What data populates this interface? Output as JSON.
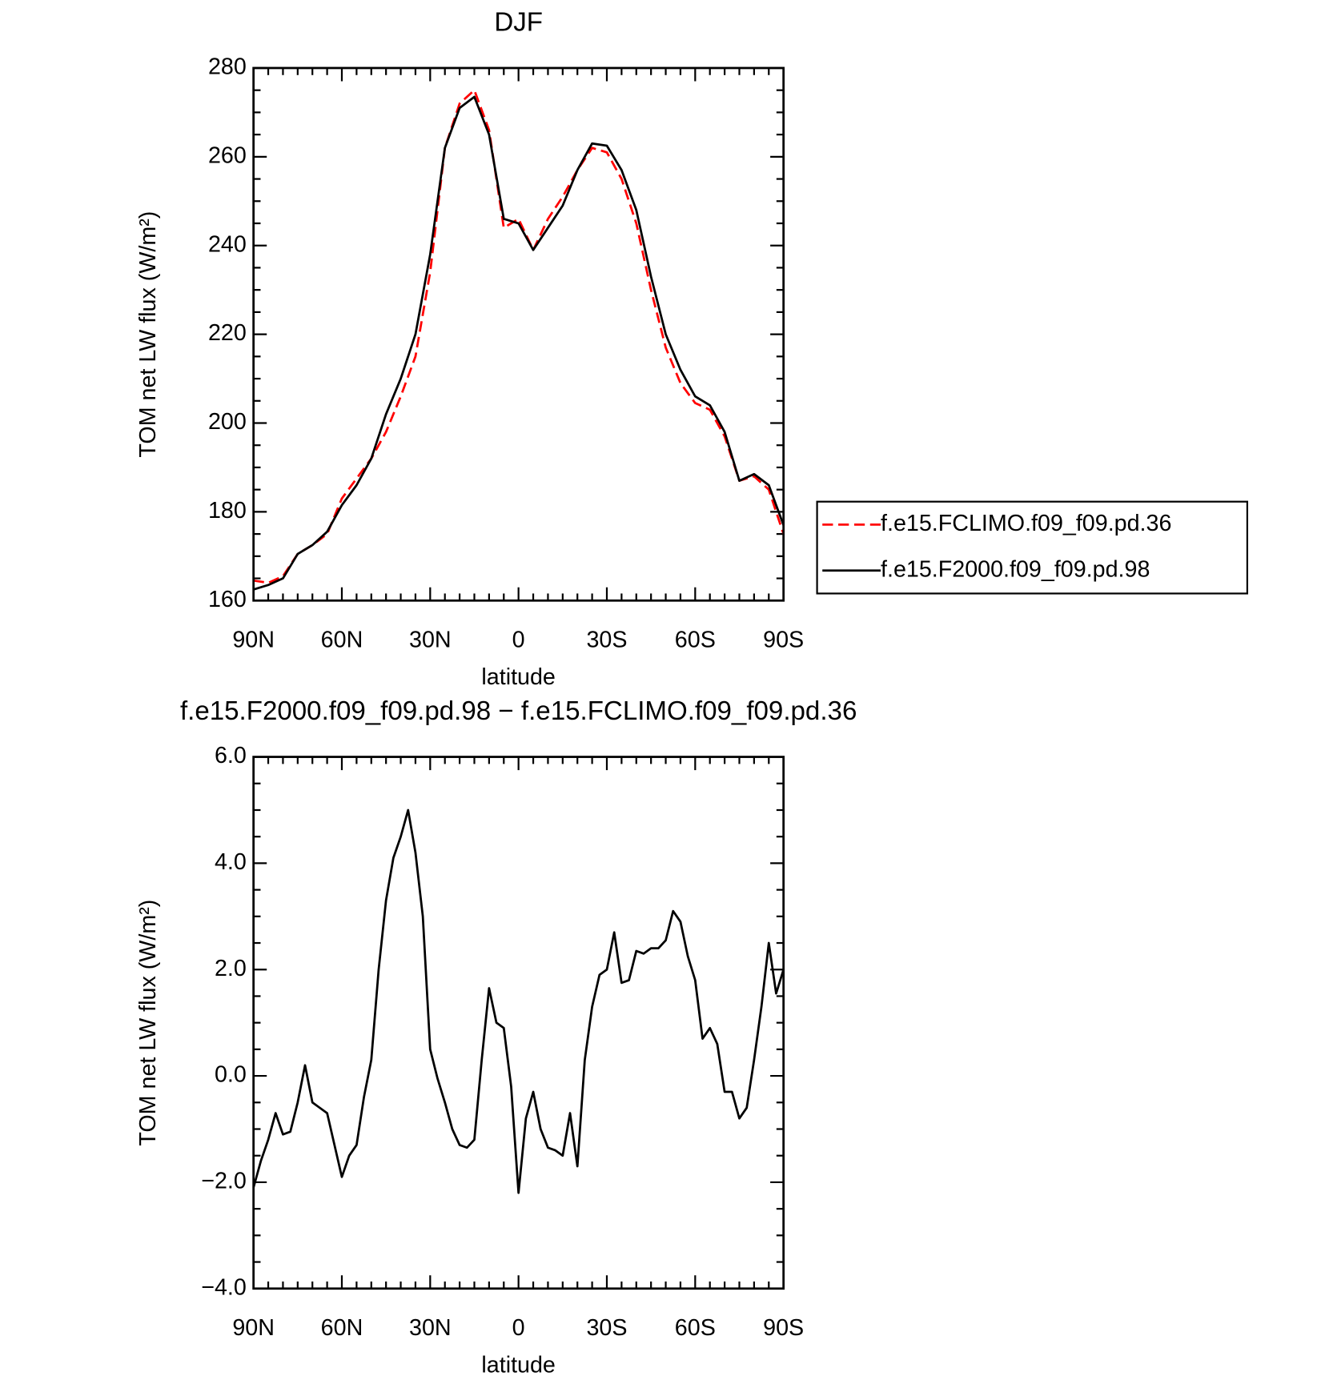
{
  "chart_data": [
    {
      "type": "line",
      "title": "DJF",
      "xlabel": "latitude",
      "ylabel": "TOM net LW flux (W/m²)",
      "x": [
        90,
        85,
        80,
        75,
        70,
        65,
        60,
        55,
        50,
        45,
        40,
        35,
        30,
        25,
        20,
        15,
        10,
        5,
        0,
        -5,
        -10,
        -15,
        -20,
        -25,
        -30,
        -35,
        -40,
        -45,
        -50,
        -55,
        -60,
        -65,
        -70,
        -75,
        -80,
        -85,
        -90
      ],
      "series": [
        {
          "name": "f.e15.FCLIMO.f09_f09.pd.36",
          "color": "#ff0000",
          "dash": "dashed",
          "values": [
            164.5,
            164,
            165.5,
            170.5,
            172.5,
            175,
            183,
            187.5,
            192,
            198,
            206,
            215,
            234,
            262,
            272,
            275,
            266,
            244,
            246,
            239,
            246,
            251,
            257,
            262,
            261,
            255,
            245,
            230,
            217,
            209,
            204.5,
            203,
            197,
            187,
            188,
            185,
            175
          ]
        },
        {
          "name": "f.e15.F2000.f09_f09.pd.98",
          "color": "#000000",
          "dash": "solid",
          "values": [
            162.5,
            163.5,
            165,
            170.5,
            172.5,
            175.5,
            181.5,
            186,
            192,
            202,
            210,
            220,
            238,
            262,
            271,
            273.5,
            265,
            246,
            245,
            239,
            244,
            249,
            257,
            263,
            262.5,
            257,
            248,
            233,
            220,
            212,
            206,
            204,
            198,
            187,
            188.5,
            186,
            177
          ]
        }
      ],
      "xlim": [
        90,
        -90
      ],
      "xticks": [
        {
          "value": 90,
          "label": "90N"
        },
        {
          "value": 60,
          "label": "60N"
        },
        {
          "value": 30,
          "label": "30N"
        },
        0,
        {
          "value": -30,
          "label": "30S"
        },
        {
          "value": -60,
          "label": "60S"
        },
        {
          "value": -90,
          "label": "90S"
        }
      ],
      "ylim": [
        160,
        280
      ],
      "yticks": [
        160,
        180,
        200,
        220,
        240,
        260,
        280
      ],
      "legend": "outside-right"
    },
    {
      "type": "line",
      "title": "f.e15.F2000.f09_f09.pd.98 − f.e15.FCLIMO.f09_f09.pd.36",
      "xlabel": "latitude",
      "ylabel": "TOM net LW flux (W/m²)",
      "x": [
        90,
        87.5,
        85,
        82.5,
        80,
        77.5,
        75,
        72.5,
        70,
        67.5,
        65,
        62.5,
        60,
        57.5,
        55,
        52.5,
        50,
        47.5,
        45,
        42.5,
        40,
        37.5,
        35,
        32.5,
        30,
        27.5,
        25,
        22.5,
        20,
        17.5,
        15,
        12.5,
        10,
        7.5,
        5,
        2.5,
        0,
        -2.5,
        -5,
        -7.5,
        -10,
        -12.5,
        -15,
        -17.5,
        -20,
        -22.5,
        -25,
        -27.5,
        -30,
        -32.5,
        -35,
        -37.5,
        -40,
        -42.5,
        -45,
        -47.5,
        -50,
        -52.5,
        -55,
        -57.5,
        -60,
        -62.5,
        -65,
        -67.5,
        -70,
        -72.5,
        -75,
        -77.5,
        -80,
        -82.5,
        -85,
        -87.5,
        -90
      ],
      "series": [
        {
          "name": null,
          "color": "#000000",
          "dash": "solid",
          "values": [
            -2.1,
            -1.6,
            -1.2,
            -0.7,
            -1.1,
            -1.05,
            -0.5,
            0.2,
            -0.5,
            -0.6,
            -0.7,
            -1.3,
            -1.9,
            -1.5,
            -1.3,
            -0.4,
            0.3,
            2.0,
            3.3,
            4.1,
            4.5,
            5.0,
            4.2,
            3.0,
            0.5,
            -0.05,
            -0.5,
            -1.0,
            -1.3,
            -1.35,
            -1.2,
            0.3,
            1.65,
            1.0,
            0.9,
            -0.2,
            -2.2,
            -0.8,
            -0.3,
            -1.0,
            -1.35,
            -1.4,
            -1.5,
            -0.7,
            -1.7,
            0.3,
            1.3,
            1.9,
            2.0,
            2.7,
            1.75,
            1.8,
            2.35,
            2.3,
            2.4,
            2.4,
            2.55,
            3.1,
            2.9,
            2.25,
            1.8,
            0.7,
            0.9,
            0.6,
            -0.3,
            -0.3,
            -0.8,
            -0.6,
            0.3,
            1.3,
            2.5,
            1.55,
            2.0
          ]
        }
      ],
      "xlim": [
        90,
        -90
      ],
      "xticks": [
        {
          "value": 90,
          "label": "90N"
        },
        {
          "value": 60,
          "label": "60N"
        },
        {
          "value": 30,
          "label": "30N"
        },
        0,
        {
          "value": -30,
          "label": "30S"
        },
        {
          "value": -60,
          "label": "60S"
        },
        {
          "value": -90,
          "label": "90S"
        }
      ],
      "ylim": [
        -4,
        6
      ],
      "yticks": [
        {
          "value": -4,
          "label": "−4.0"
        },
        {
          "value": -2,
          "label": "−2.0"
        },
        {
          "value": 0,
          "label": "0.0"
        },
        {
          "value": 2,
          "label": "2.0"
        },
        {
          "value": 4,
          "label": "4.0"
        },
        {
          "value": 6,
          "label": "6.0"
        }
      ]
    }
  ]
}
